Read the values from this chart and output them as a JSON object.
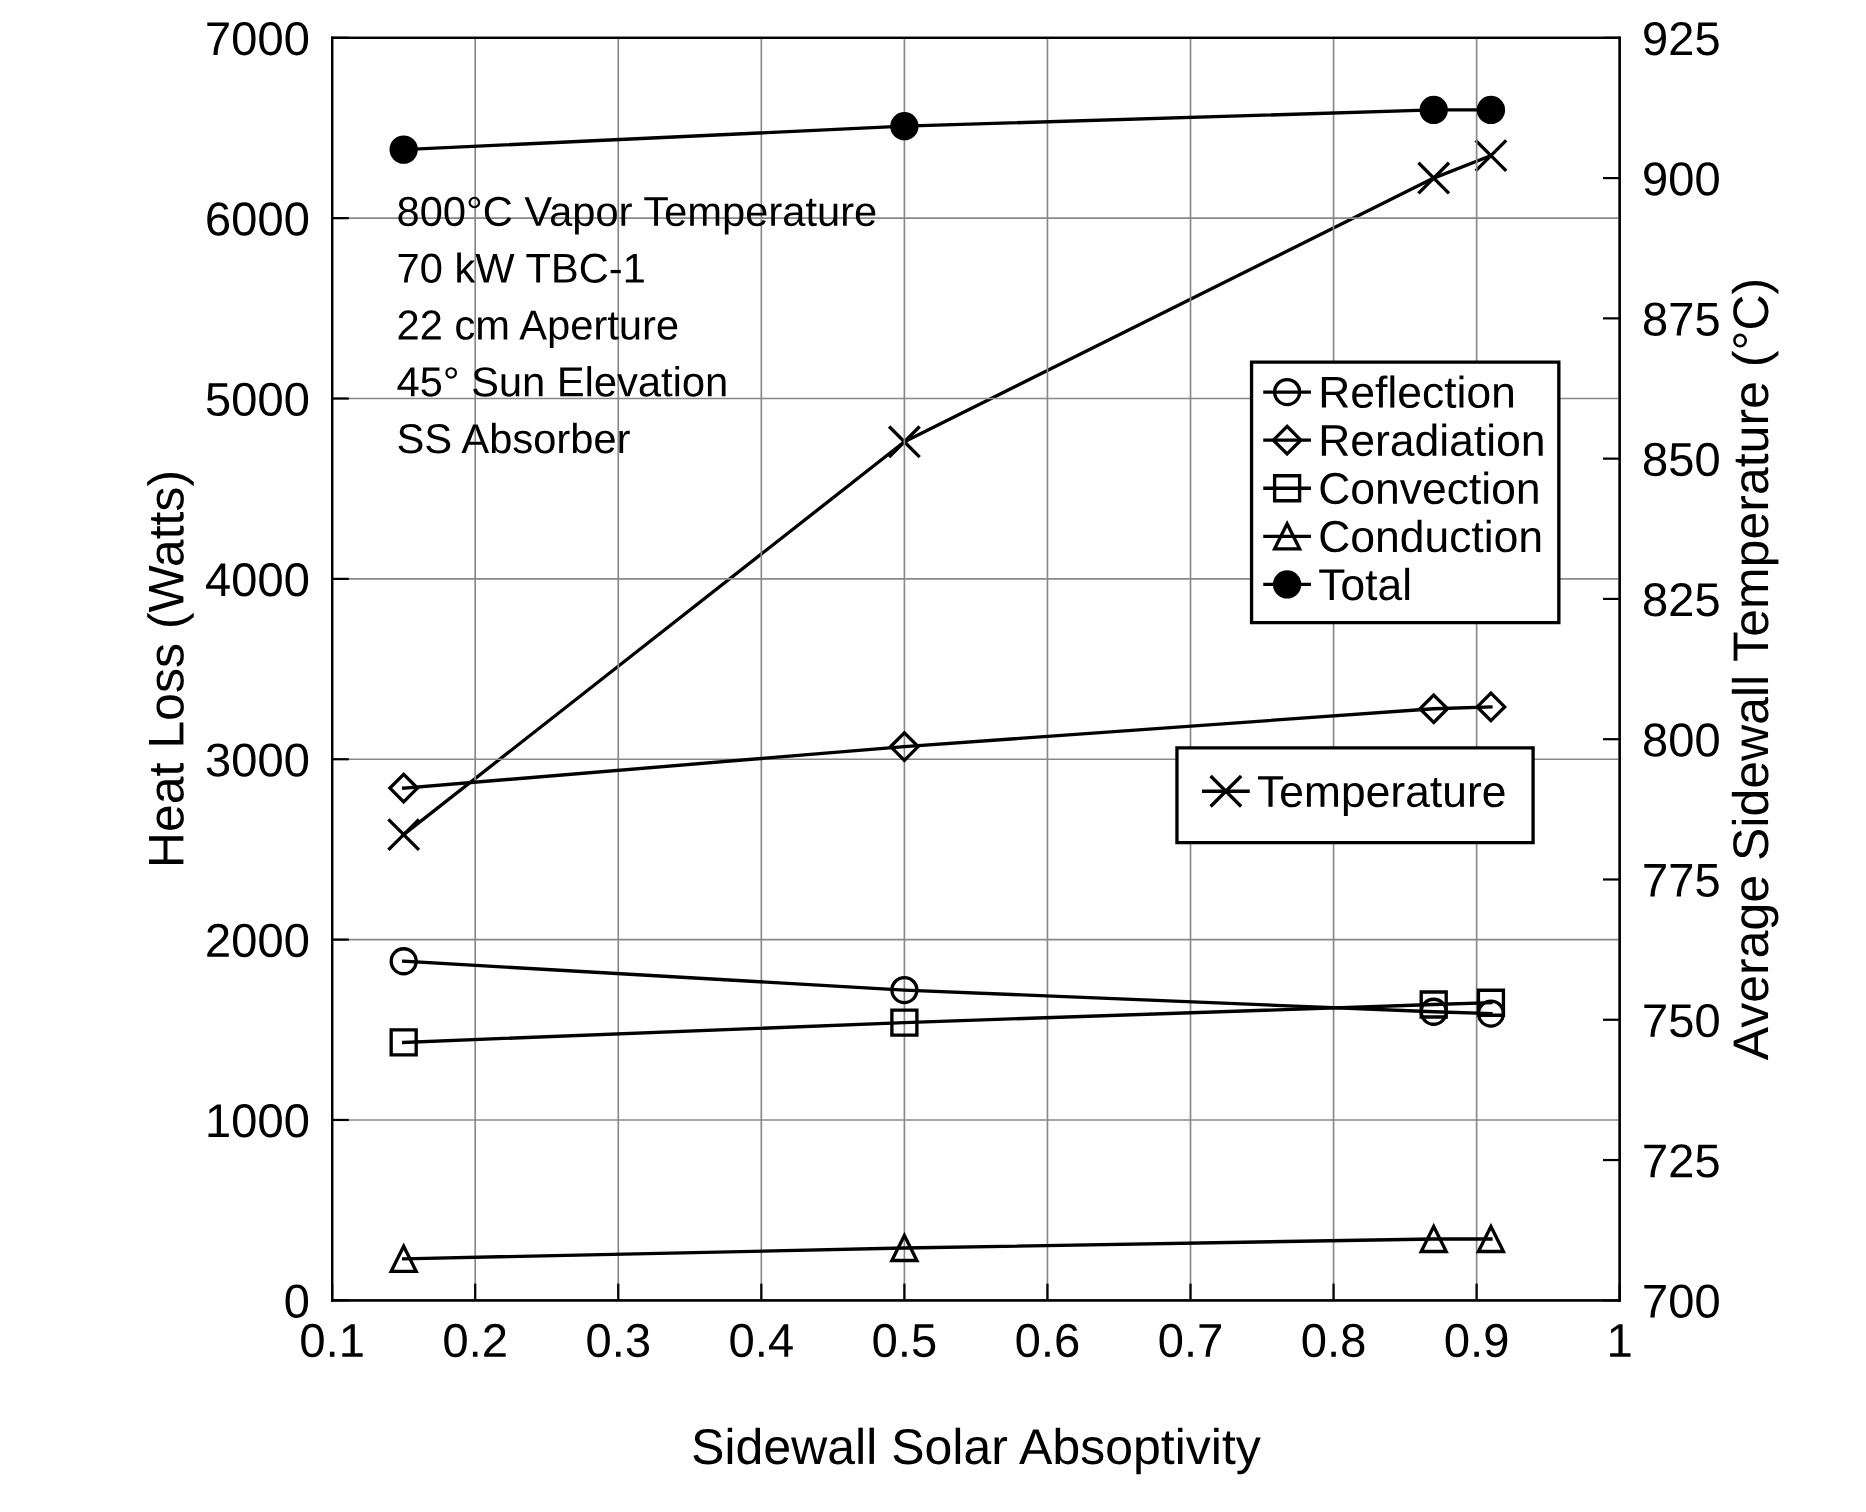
{
  "chart_data": {
    "type": "line",
    "xlabel": "Sidewall Solar Absoptivity",
    "ylabel": "Heat Loss (Watts)",
    "y2label": "Average Sidewall Temperature (°C)",
    "x": [
      0.15,
      0.5,
      0.87,
      0.91
    ],
    "series": [
      {
        "name": "Reflection",
        "color": "#000000",
        "marker": "circle",
        "values": [
          1880,
          1720,
          1600,
          1590
        ]
      },
      {
        "name": "Reradiation",
        "color": "#000000",
        "marker": "diamond",
        "values": [
          2840,
          3070,
          3280,
          3290
        ]
      },
      {
        "name": "Convection",
        "color": "#000000",
        "marker": "square",
        "values": [
          1430,
          1540,
          1640,
          1650
        ]
      },
      {
        "name": "Conduction",
        "color": "#000000",
        "marker": "triangle",
        "values": [
          230,
          290,
          340,
          340
        ]
      },
      {
        "name": "Total",
        "color": "#000000",
        "marker": "circle_filled",
        "values": [
          6380,
          6510,
          6600,
          6600
        ]
      },
      {
        "name": "Temperature",
        "color": "#000000",
        "marker": "cross",
        "axis": "y2",
        "values": [
          783,
          853,
          900,
          904
        ]
      }
    ],
    "xlim": [
      0.1,
      1.0
    ],
    "xticks": [
      0.1,
      0.2,
      0.3,
      0.4,
      0.5,
      0.6,
      0.7,
      0.8,
      0.9,
      1
    ],
    "ylim": [
      0,
      7000
    ],
    "yticks": [
      0,
      1000,
      2000,
      3000,
      4000,
      5000,
      6000,
      7000
    ],
    "y2lim": [
      700,
      925
    ],
    "y2ticks": [
      700,
      725,
      750,
      775,
      800,
      825,
      850,
      875,
      900,
      925
    ],
    "grid": true,
    "legend": "right",
    "annotations": [
      "800°C Vapor Temperature",
      "70 kW TBC-1",
      "22 cm Aperture",
      "45° Sun Elevation",
      "SS Absorber"
    ]
  }
}
